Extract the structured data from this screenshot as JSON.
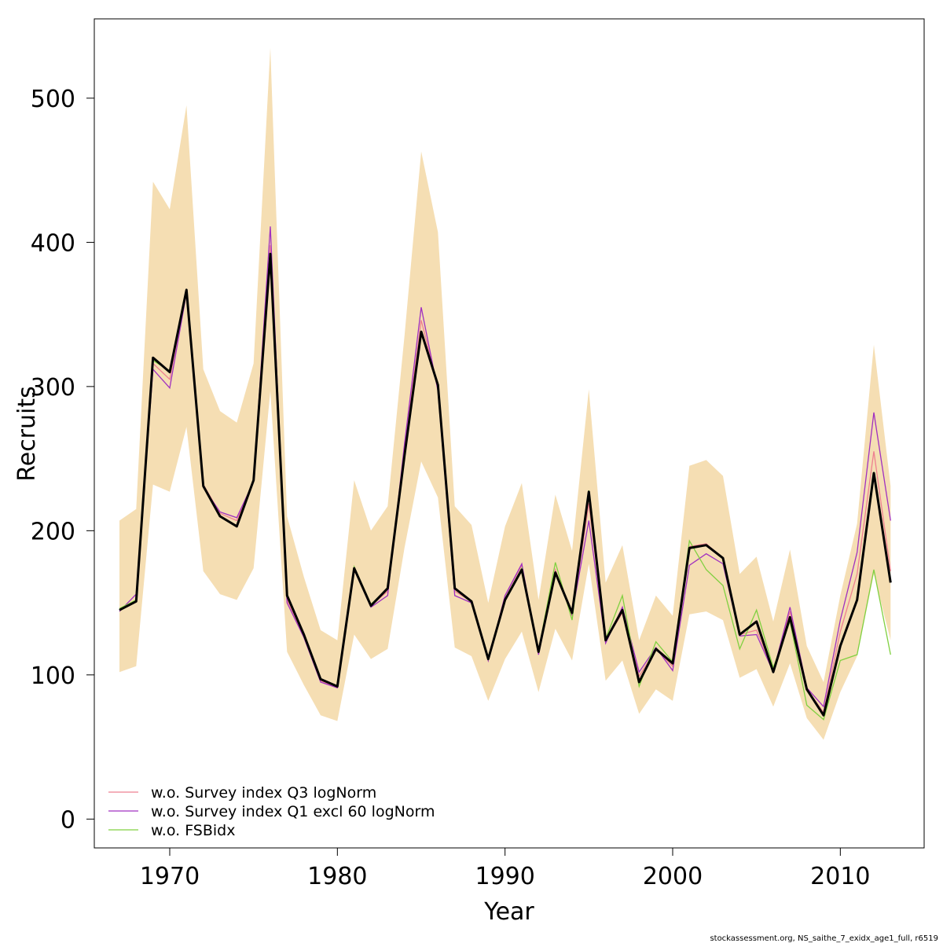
{
  "chart_data": {
    "type": "line",
    "xlabel": "Year",
    "ylabel": "Recruits",
    "xlim": [
      1965.5,
      2015
    ],
    "ylim": [
      -20,
      555
    ],
    "x_ticks": [
      1970,
      1980,
      1990,
      2000,
      2010
    ],
    "y_ticks": [
      0,
      100,
      200,
      300,
      400,
      500
    ],
    "x": [
      1967,
      1968,
      1969,
      1970,
      1971,
      1972,
      1973,
      1974,
      1975,
      1976,
      1977,
      1978,
      1979,
      1980,
      1981,
      1982,
      1983,
      1984,
      1985,
      1986,
      1987,
      1988,
      1989,
      1990,
      1991,
      1992,
      1993,
      1994,
      1995,
      1996,
      1997,
      1998,
      1999,
      2000,
      2001,
      2002,
      2003,
      2004,
      2005,
      2006,
      2007,
      2008,
      2009,
      2010,
      2011,
      2012,
      2013
    ],
    "band": {
      "color": "#F5DEB3",
      "lower": [
        102,
        106,
        232,
        227,
        272,
        172,
        156,
        152,
        174,
        297,
        116,
        93,
        72,
        68,
        128,
        111,
        118,
        188,
        248,
        223,
        119,
        113,
        82,
        111,
        130,
        88,
        132,
        110,
        177,
        96,
        110,
        73,
        90,
        82,
        142,
        144,
        138,
        98,
        104,
        78,
        108,
        70,
        55,
        88,
        113,
        170,
        124
      ],
      "upper": [
        207,
        215,
        442,
        423,
        495,
        312,
        283,
        275,
        316,
        535,
        210,
        168,
        131,
        124,
        235,
        200,
        217,
        335,
        463,
        407,
        217,
        204,
        150,
        203,
        233,
        152,
        225,
        186,
        298,
        164,
        190,
        124,
        155,
        141,
        245,
        249,
        238,
        170,
        182,
        137,
        187,
        120,
        95,
        155,
        205,
        329,
        231
      ]
    },
    "base": {
      "color": "#000000",
      "values": [
        145,
        151,
        320,
        310,
        367,
        231,
        210,
        203,
        235,
        392,
        155,
        128,
        97,
        92,
        174,
        148,
        160,
        252,
        338,
        301,
        160,
        151,
        111,
        152,
        173,
        116,
        171,
        143,
        227,
        124,
        145,
        95,
        118,
        108,
        188,
        190,
        181,
        128,
        137,
        102,
        140,
        90,
        72,
        120,
        152,
        240,
        164
      ]
    },
    "series": [
      {
        "name": "w.o. Survey index Q3 logNorm",
        "color": "#EE8090",
        "values": [
          145,
          151,
          316,
          305,
          366,
          232,
          212,
          207,
          235,
          398,
          152,
          127,
          96,
          91,
          174,
          148,
          158,
          256,
          346,
          300,
          158,
          151,
          110,
          155,
          176,
          115,
          173,
          141,
          219,
          124,
          143,
          99,
          118,
          106,
          189,
          191,
          181,
          128,
          131,
          103,
          144,
          90,
          74,
          130,
          170,
          255,
          172
        ]
      },
      {
        "name": "w.o. Survey index Q1 excl 60 logNorm",
        "color": "#A030C0",
        "values": [
          144,
          156,
          312,
          299,
          365,
          230,
          213,
          209,
          234,
          411,
          150,
          126,
          95,
          91,
          173,
          147,
          155,
          260,
          355,
          297,
          155,
          150,
          110,
          155,
          177,
          114,
          171,
          142,
          207,
          122,
          147,
          102,
          119,
          103,
          176,
          184,
          177,
          127,
          128,
          102,
          147,
          91,
          78,
          138,
          185,
          282,
          207
        ]
      },
      {
        "name": "w.o. FSBidx",
        "color": "#80D040",
        "values": [
          146,
          152,
          318,
          311,
          367,
          231,
          210,
          203,
          236,
          392,
          156,
          128,
          97,
          92,
          175,
          149,
          160,
          252,
          337,
          301,
          160,
          151,
          111,
          152,
          174,
          117,
          178,
          138,
          228,
          125,
          155,
          92,
          123,
          109,
          193,
          173,
          162,
          118,
          145,
          105,
          137,
          79,
          69,
          110,
          114,
          173,
          114
        ]
      }
    ]
  },
  "footer_text": "stockassessment.org, NS_saithe_7_exidx_age1_full, r6519"
}
